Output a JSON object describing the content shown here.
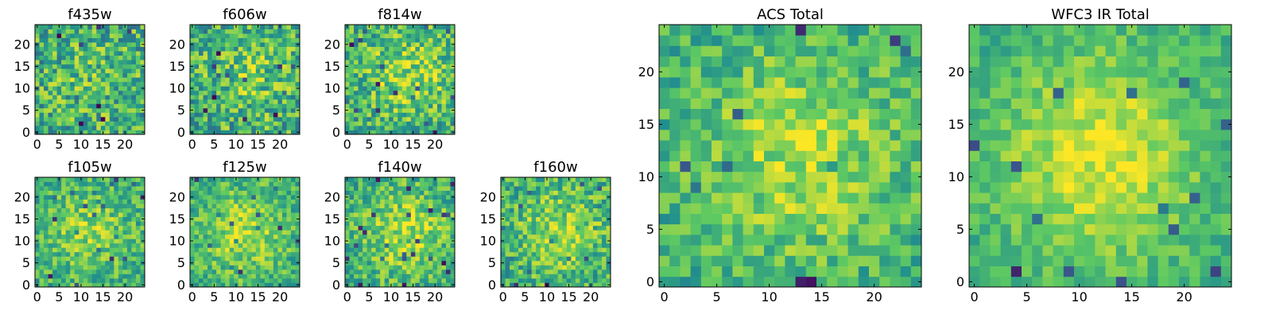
{
  "chart_data": [
    {
      "type": "heatmap",
      "title": "f435w",
      "size": 25,
      "xticks": [
        0,
        5,
        10,
        15,
        20
      ],
      "yticks": [
        0,
        5,
        10,
        15,
        20
      ],
      "xlim": [
        -0.5,
        24.5
      ],
      "ylim": [
        -0.5,
        24.5
      ],
      "peak": [
        12,
        12
      ],
      "contrast": 0.15,
      "noise": 0.55,
      "seed": 11
    },
    {
      "type": "heatmap",
      "title": "f606w",
      "size": 25,
      "xticks": [
        0,
        5,
        10,
        15,
        20
      ],
      "yticks": [
        0,
        5,
        10,
        15,
        20
      ],
      "xlim": [
        -0.5,
        24.5
      ],
      "ylim": [
        -0.5,
        24.5
      ],
      "peak": [
        13,
        13
      ],
      "contrast": 0.25,
      "noise": 0.55,
      "seed": 23
    },
    {
      "type": "heatmap",
      "title": "f814w",
      "size": 25,
      "xticks": [
        0,
        5,
        10,
        15,
        20
      ],
      "yticks": [
        0,
        5,
        10,
        15,
        20
      ],
      "xlim": [
        -0.5,
        24.5
      ],
      "ylim": [
        -0.5,
        24.5
      ],
      "peak": [
        14,
        13
      ],
      "contrast": 0.4,
      "noise": 0.5,
      "seed": 37
    },
    {
      "type": "heatmap",
      "title": "f105w",
      "size": 25,
      "xticks": [
        0,
        5,
        10,
        15,
        20
      ],
      "yticks": [
        0,
        5,
        10,
        15,
        20
      ],
      "xlim": [
        -0.5,
        24.5
      ],
      "ylim": [
        -0.5,
        24.5
      ],
      "peak": [
        12,
        12
      ],
      "contrast": 0.35,
      "noise": 0.4,
      "seed": 41
    },
    {
      "type": "heatmap",
      "title": "f125w",
      "size": 25,
      "xticks": [
        0,
        5,
        10,
        15,
        20
      ],
      "yticks": [
        0,
        5,
        10,
        15,
        20
      ],
      "xlim": [
        -0.5,
        24.5
      ],
      "ylim": [
        -0.5,
        24.5
      ],
      "peak": [
        12,
        12
      ],
      "contrast": 0.45,
      "noise": 0.38,
      "seed": 53
    },
    {
      "type": "heatmap",
      "title": "f140w",
      "size": 25,
      "xticks": [
        0,
        5,
        10,
        15,
        20
      ],
      "yticks": [
        0,
        5,
        10,
        15,
        20
      ],
      "xlim": [
        -0.5,
        24.5
      ],
      "ylim": [
        -0.5,
        24.5
      ],
      "peak": [
        13,
        12
      ],
      "contrast": 0.45,
      "noise": 0.42,
      "seed": 67
    },
    {
      "type": "heatmap",
      "title": "f160w",
      "size": 25,
      "xticks": [
        0,
        5,
        10,
        15,
        20
      ],
      "yticks": [
        0,
        5,
        10,
        15,
        20
      ],
      "xlim": [
        -0.5,
        24.5
      ],
      "ylim": [
        -0.5,
        24.5
      ],
      "peak": [
        13,
        12
      ],
      "contrast": 0.4,
      "noise": 0.45,
      "seed": 79
    },
    {
      "type": "heatmap",
      "title": "ACS Total",
      "size": 25,
      "xticks": [
        0,
        5,
        10,
        15,
        20
      ],
      "yticks": [
        0,
        5,
        10,
        15,
        20
      ],
      "xlim": [
        -0.5,
        24.5
      ],
      "ylim": [
        -0.5,
        24.5
      ],
      "peak": [
        13,
        12
      ],
      "contrast": 0.45,
      "noise": 0.35,
      "seed": 97
    },
    {
      "type": "heatmap",
      "title": "WFC3 IR Total",
      "size": 25,
      "xticks": [
        0,
        5,
        10,
        15,
        20
      ],
      "yticks": [
        0,
        5,
        10,
        15,
        20
      ],
      "xlim": [
        -0.5,
        24.5
      ],
      "ylim": [
        -0.5,
        24.5
      ],
      "peak": [
        12,
        12
      ],
      "contrast": 0.6,
      "noise": 0.25,
      "seed": 131
    }
  ],
  "colormap": [
    "#440154",
    "#3b528b",
    "#21908d",
    "#5dc963",
    "#fde725"
  ]
}
